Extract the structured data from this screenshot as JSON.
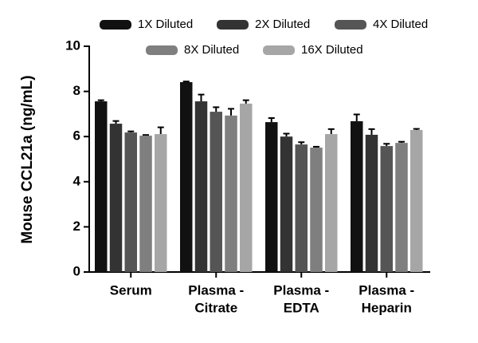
{
  "chart_data": {
    "type": "bar",
    "y_label": "Mouse CCL21a (ng/mL)",
    "categories": [
      [
        "Serum"
      ],
      [
        "Plasma -",
        "Citrate"
      ],
      [
        "Plasma -",
        "EDTA"
      ],
      [
        "Plasma -",
        "Heparin"
      ]
    ],
    "series": [
      {
        "name": "1X Diluted",
        "color": "#111111",
        "values": [
          7.56,
          8.41,
          6.64,
          6.68
        ],
        "errors": [
          0.05,
          0.03,
          0.18,
          0.3
        ]
      },
      {
        "name": "2X Diluted",
        "color": "#333333",
        "values": [
          6.57,
          7.56,
          6.0,
          6.08
        ],
        "errors": [
          0.12,
          0.3,
          0.13,
          0.25
        ]
      },
      {
        "name": "4X Diluted",
        "color": "#555555",
        "values": [
          6.18,
          7.1,
          5.65,
          5.58
        ],
        "errors": [
          0.05,
          0.2,
          0.1,
          0.1
        ]
      },
      {
        "name": "8X Diluted",
        "color": "#7f7f7f",
        "values": [
          6.04,
          6.93,
          5.51,
          5.72
        ],
        "errors": [
          0.03,
          0.3,
          0.04,
          0.05
        ]
      },
      {
        "name": "16X Diluted",
        "color": "#a6a6a6",
        "values": [
          6.11,
          7.46,
          6.11,
          6.29
        ],
        "errors": [
          0.3,
          0.15,
          0.22,
          0.05
        ]
      }
    ],
    "ylim": [
      0,
      10
    ],
    "yticks": [
      0,
      2,
      4,
      6,
      8,
      10
    ],
    "legend": "top"
  }
}
